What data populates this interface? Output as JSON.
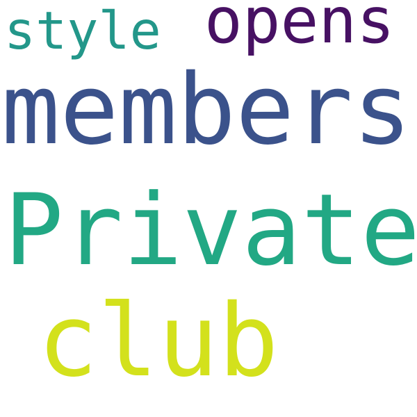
{
  "words": [
    {
      "key": "private",
      "text": "Private",
      "color": "#22a884"
    },
    {
      "key": "members",
      "text": "members",
      "color": "#3b528b"
    },
    {
      "key": "club",
      "text": "club",
      "color": "#d3e11c"
    },
    {
      "key": "opens",
      "text": "opens",
      "color": "#471163"
    },
    {
      "key": "style",
      "text": "style",
      "color": "#23978a"
    }
  ]
}
